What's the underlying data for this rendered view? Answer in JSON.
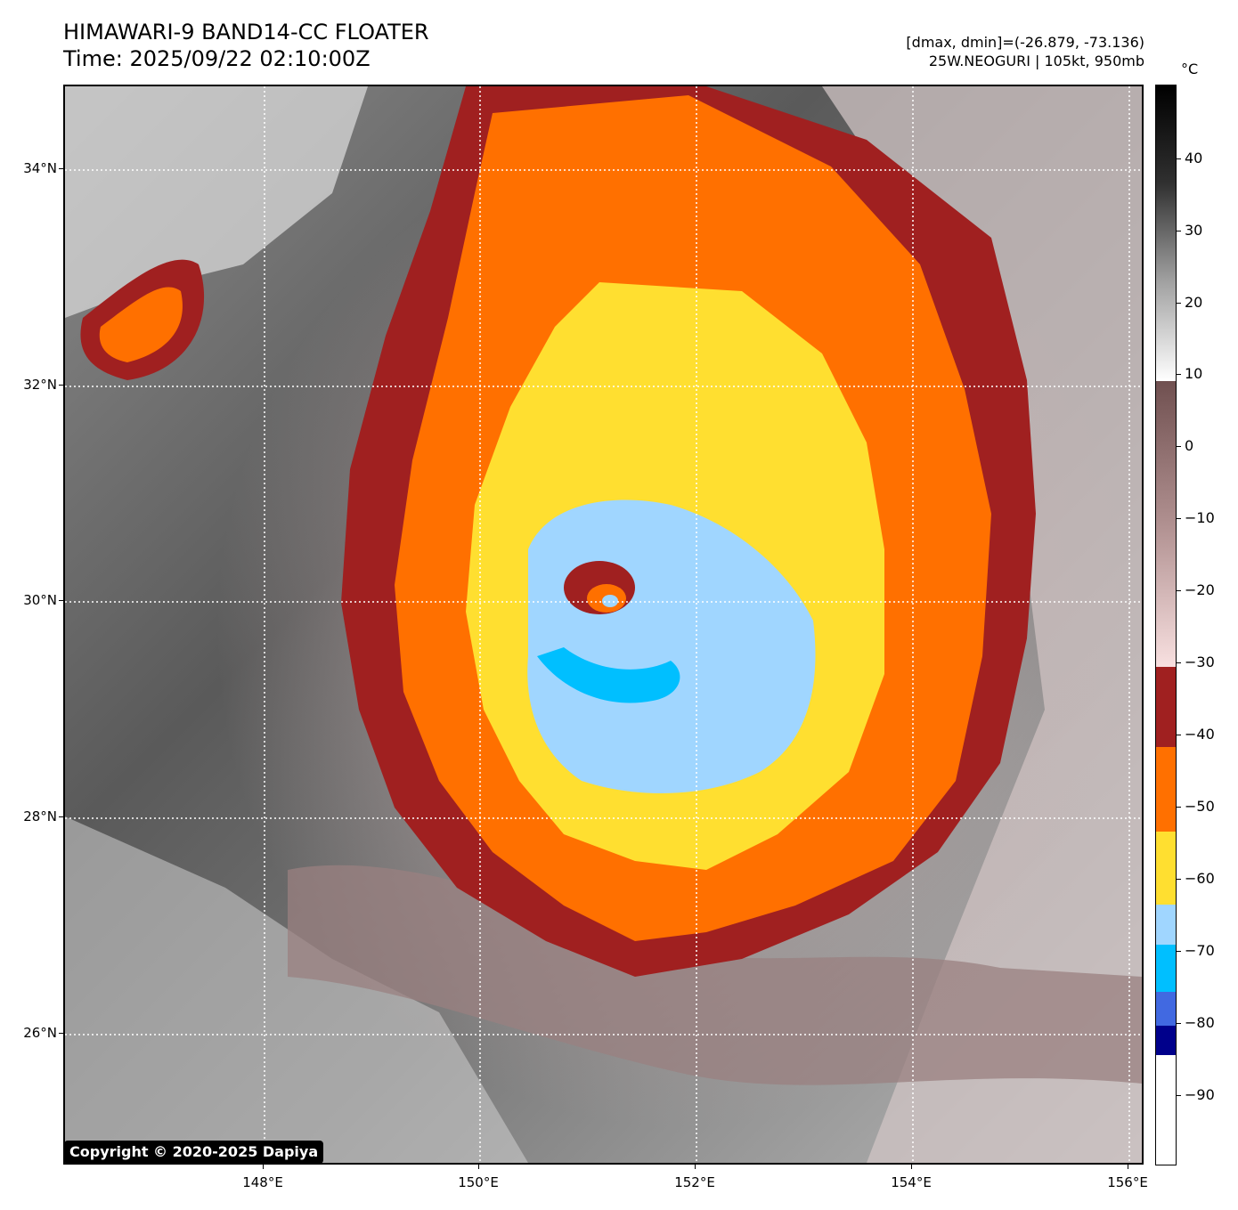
{
  "header": {
    "title_line1": "HIMAWARI-9 BAND14-CC FLOATER",
    "title_line2": "Time: 2025/09/22 02:10:00Z",
    "range_text": "[dmax, dmin]=(-26.879, -73.136)",
    "storm_text": "25W.NEOGURI | 105kt, 950mb"
  },
  "map": {
    "lat_labels": [
      "34°N",
      "32°N",
      "30°N",
      "28°N",
      "26°N"
    ],
    "lon_labels": [
      "148°E",
      "150°E",
      "152°E",
      "154°E",
      "156°E"
    ],
    "colors": {
      "lt-90": "#ffffff",
      "-90_-80": "#00008b",
      "-80_-75": "#4169e1",
      "-75_-70": "#00bfff",
      "-70_-65": "#a0d6ff",
      "-65_-55": "#ffdf30",
      "-55_-45": "#ff7000",
      "-45_-35": "#a02020",
      "gray_cold": "#bfb0b0",
      "gray_warm": "#505050"
    }
  },
  "copyright": "Copyright © 2020-2025 Dapiya",
  "colorbar": {
    "unit": "°C",
    "ticks": [
      "40",
      "30",
      "20",
      "10",
      "0",
      "−10",
      "−20",
      "−30",
      "−40",
      "−50",
      "−60",
      "−70",
      "−80",
      "−90"
    ]
  }
}
